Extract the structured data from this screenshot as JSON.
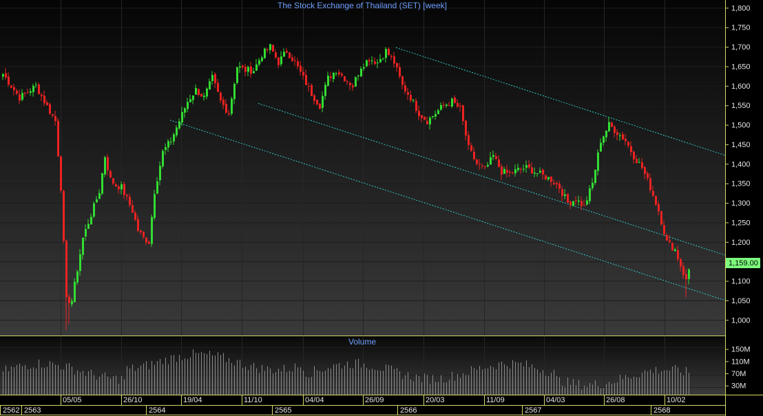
{
  "chart_data": [
    {
      "type": "candlestick",
      "title": "The Stock Exchange of Thailand (SET) [week]",
      "ylim": [
        960,
        1820
      ],
      "y_ticks": [
        1000,
        1050,
        1100,
        1150,
        1200,
        1250,
        1300,
        1350,
        1400,
        1450,
        1500,
        1550,
        1600,
        1650,
        1700,
        1750,
        1800
      ],
      "y_tick_labels": [
        "1,000",
        "1,050",
        "1,100",
        "1,150",
        "1,200",
        "1,250",
        "1,300",
        "1,350",
        "1,400",
        "1,450",
        "1,500",
        "1,550",
        "1,600",
        "1,650",
        "1,700",
        "1,750",
        "1,800"
      ],
      "last_value_label": "1,159.00",
      "last_value": 1159,
      "colors": {
        "up": "#33dd33",
        "down": "#ee2222",
        "trendline": "#33cccc",
        "last_value_bg": "#7dff7d",
        "title": "#6fa0ff"
      },
      "grid": true,
      "x_date_labels": [
        "05/05",
        "26/10",
        "19/04",
        "11/10",
        "04/04",
        "26/09",
        "20/03",
        "11/09",
        "04/03",
        "26/08",
        "10/02"
      ],
      "x_year_labels": [
        "2562",
        "2563",
        "2564",
        "2565",
        "2566",
        "2567",
        "2568"
      ],
      "anchors": [
        [
          0,
          1630
        ],
        [
          3,
          1600
        ],
        [
          6,
          1570
        ],
        [
          9,
          1585
        ],
        [
          12,
          1600
        ],
        [
          15,
          1560
        ],
        [
          19,
          1510
        ],
        [
          21,
          1340
        ],
        [
          23,
          1050
        ],
        [
          25,
          1050
        ],
        [
          27,
          1130
        ],
        [
          29,
          1210
        ],
        [
          31,
          1250
        ],
        [
          33,
          1290
        ],
        [
          35,
          1330
        ],
        [
          37,
          1420
        ],
        [
          39,
          1360
        ],
        [
          41,
          1345
        ],
        [
          43,
          1340
        ],
        [
          45,
          1310
        ],
        [
          47,
          1280
        ],
        [
          49,
          1230
        ],
        [
          51,
          1210
        ],
        [
          53,
          1200
        ],
        [
          55,
          1330
        ],
        [
          58,
          1430
        ],
        [
          61,
          1460
        ],
        [
          64,
          1510
        ],
        [
          67,
          1560
        ],
        [
          70,
          1590
        ],
        [
          73,
          1570
        ],
        [
          76,
          1620
        ],
        [
          79,
          1560
        ],
        [
          82,
          1530
        ],
        [
          85,
          1650
        ],
        [
          88,
          1640
        ],
        [
          91,
          1640
        ],
        [
          94,
          1680
        ],
        [
          97,
          1700
        ],
        [
          100,
          1660
        ],
        [
          103,
          1690
        ],
        [
          106,
          1660
        ],
        [
          109,
          1620
        ],
        [
          112,
          1580
        ],
        [
          115,
          1550
        ],
        [
          118,
          1620
        ],
        [
          121,
          1640
        ],
        [
          124,
          1620
        ],
        [
          127,
          1600
        ],
        [
          130,
          1650
        ],
        [
          133,
          1670
        ],
        [
          136,
          1660
        ],
        [
          139,
          1690
        ],
        [
          142,
          1660
        ],
        [
          145,
          1600
        ],
        [
          148,
          1570
        ],
        [
          151,
          1530
        ],
        [
          154,
          1510
        ],
        [
          157,
          1530
        ],
        [
          160,
          1550
        ],
        [
          163,
          1560
        ],
        [
          166,
          1540
        ],
        [
          169,
          1440
        ],
        [
          172,
          1400
        ],
        [
          175,
          1385
        ],
        [
          178,
          1420
        ],
        [
          181,
          1380
        ],
        [
          184,
          1375
        ],
        [
          187,
          1385
        ],
        [
          190,
          1390
        ],
        [
          193,
          1380
        ],
        [
          196,
          1370
        ],
        [
          199,
          1360
        ],
        [
          202,
          1340
        ],
        [
          205,
          1300
        ],
        [
          208,
          1310
        ],
        [
          211,
          1290
        ],
        [
          214,
          1350
        ],
        [
          217,
          1460
        ],
        [
          220,
          1500
        ],
        [
          223,
          1480
        ],
        [
          226,
          1460
        ],
        [
          229,
          1420
        ],
        [
          232,
          1390
        ],
        [
          235,
          1340
        ],
        [
          238,
          1280
        ],
        [
          241,
          1200
        ],
        [
          244,
          1180
        ],
        [
          246,
          1140
        ],
        [
          248,
          1100
        ],
        [
          250,
          1159
        ]
      ],
      "volume": {
        "title": "Volume",
        "ylim": [
          0,
          190
        ],
        "y_ticks": [
          30,
          70,
          110,
          150
        ],
        "y_tick_labels": [
          "30M",
          "70M",
          "110M",
          "150M"
        ],
        "bar_color": "#8c8c8c"
      }
    }
  ]
}
